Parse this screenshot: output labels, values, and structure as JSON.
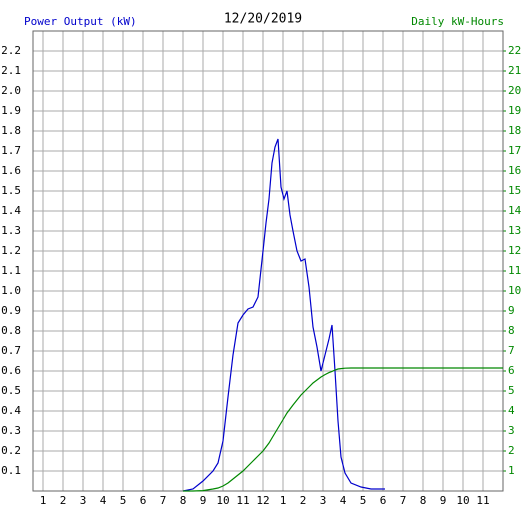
{
  "chart_data": {
    "type": "line",
    "title": "12/20/2019",
    "y_label": "Power Output (kW)",
    "y2_label": "Daily kW-Hours",
    "x": [
      8,
      8.5,
      9,
      9.5,
      9.75,
      10,
      10.25,
      10.5,
      10.75,
      11,
      11.25,
      11.5,
      11.75,
      12,
      12.15,
      12.3,
      12.45,
      12.6,
      12.75,
      12.9,
      13.05,
      13.2,
      13.35,
      13.5,
      13.7,
      13.9,
      14.1,
      14.3,
      14.5,
      14.7,
      14.9,
      15.1,
      15.3,
      15.45,
      15.6,
      15.75,
      15.9,
      16.1,
      16.4,
      16.9,
      17.4,
      18.1,
      18.2,
      24
    ],
    "series": [
      {
        "name": "Power Output (kW)",
        "color": "#0000cc",
        "axis": "y",
        "values": [
          0,
          0.01,
          0.05,
          0.1,
          0.14,
          0.25,
          0.47,
          0.68,
          0.84,
          0.88,
          0.91,
          0.92,
          0.97,
          1.2,
          1.34,
          1.46,
          1.64,
          1.72,
          1.76,
          1.52,
          1.46,
          1.5,
          1.38,
          1.3,
          1.2,
          1.15,
          1.16,
          1.02,
          0.82,
          0.72,
          0.6,
          0.68,
          0.76,
          0.83,
          0.6,
          0.35,
          0.17,
          0.09,
          0.04,
          0.02,
          0.01,
          0.01,
          null,
          null
        ]
      },
      {
        "name": "Daily kW-Hours",
        "color": "#008800",
        "axis": "y2",
        "values": [
          0,
          0,
          0.02,
          0.1,
          0.15,
          0.25,
          0.4,
          0.6,
          0.8,
          1.0,
          1.25,
          1.5,
          1.75,
          2.0,
          2.2,
          2.4,
          2.65,
          2.9,
          3.15,
          3.4,
          3.65,
          3.9,
          4.1,
          4.3,
          4.55,
          4.8,
          5.0,
          5.2,
          5.4,
          5.55,
          5.7,
          5.82,
          5.92,
          5.98,
          6.05,
          6.1,
          6.12,
          6.14,
          6.15,
          6.15,
          6.15,
          6.15,
          6.15,
          6.15
        ]
      }
    ],
    "xlim": [
      0.5,
      24
    ],
    "xticks": [
      1,
      2,
      3,
      4,
      5,
      6,
      7,
      8,
      9,
      10,
      11,
      12,
      {
        "value": 13,
        "label": "1"
      },
      {
        "value": 14,
        "label": "2"
      },
      {
        "value": 15,
        "label": "3"
      },
      {
        "value": 16,
        "label": "4"
      },
      {
        "value": 17,
        "label": "5"
      },
      {
        "value": 18,
        "label": "6"
      },
      {
        "value": 19,
        "label": "7"
      },
      {
        "value": 20,
        "label": "8"
      },
      {
        "value": 21,
        "label": "9"
      },
      {
        "value": 22,
        "label": "10"
      },
      {
        "value": 23,
        "label": "11"
      }
    ],
    "ylim": [
      0,
      2.3
    ],
    "yticks": [
      0.1,
      0.2,
      0.3,
      0.4,
      0.5,
      0.6,
      0.7,
      0.8,
      0.9,
      {
        "value": 1,
        "label": "1.0"
      },
      1.1,
      1.2,
      1.3,
      1.4,
      1.5,
      1.6,
      1.7,
      1.8,
      1.9,
      {
        "value": 2,
        "label": "2.0"
      },
      2.1,
      2.2
    ],
    "y2lim": [
      0,
      23
    ],
    "y2ticks": [
      1,
      2,
      3,
      4,
      5,
      6,
      7,
      8,
      9,
      10,
      11,
      12,
      13,
      14,
      15,
      16,
      17,
      18,
      19,
      20,
      21,
      22
    ],
    "grid": true
  }
}
